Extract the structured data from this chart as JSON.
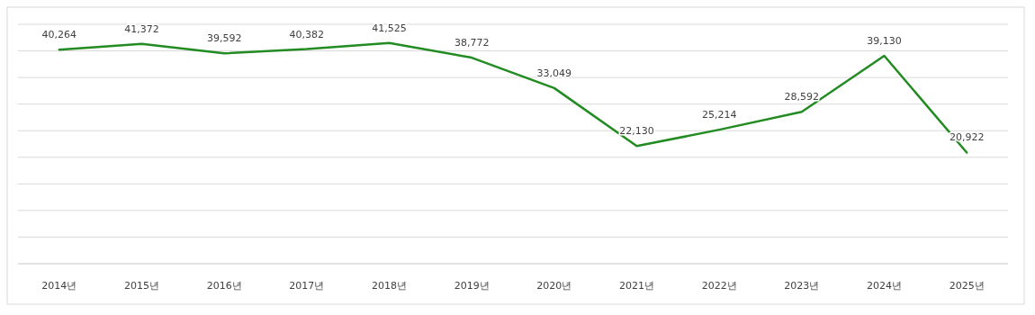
{
  "chart_data": {
    "type": "line",
    "categories": [
      "2014년",
      "2015년",
      "2016년",
      "2017년",
      "2018년",
      "2019년",
      "2020년",
      "2021년",
      "2022년",
      "2023년",
      "2024년",
      "2025년"
    ],
    "series": [
      {
        "color": "#228b22",
        "values": [
          40264,
          41372,
          39592,
          40382,
          41525,
          38772,
          33049,
          22130,
          25214,
          28592,
          39130,
          20922
        ],
        "value_labels": [
          "40,264",
          "41,372",
          "39,592",
          "40,382",
          "41,525",
          "38,772",
          "33,049",
          "22,130",
          "25,214",
          "28,592",
          "39,130",
          "20,922"
        ]
      }
    ],
    "tick_labels": "x",
    "grid": "y",
    "marker": "none",
    "line_style": "solid"
  }
}
